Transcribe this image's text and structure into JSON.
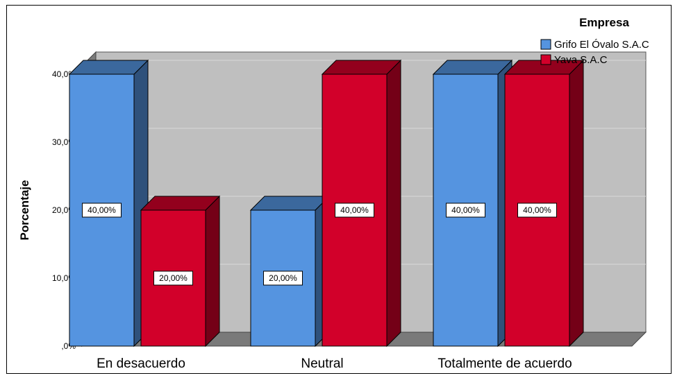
{
  "chart_data": {
    "type": "bar",
    "categories": [
      "En desacuerdo",
      "Neutral",
      "Totalmente de acuerdo"
    ],
    "series": [
      {
        "name": "Grifo El Óvalo S.A.C",
        "values": [
          40,
          20,
          40
        ],
        "labels": [
          "40,00%",
          "20,00%",
          "40,00%"
        ],
        "color": "#5594e0"
      },
      {
        "name": "Yava S.A.C",
        "values": [
          20,
          40,
          40
        ],
        "labels": [
          "20,00%",
          "40,00%",
          "40,00%"
        ],
        "color": "#d2002a"
      }
    ],
    "title": "",
    "xlabel": "",
    "ylabel": "Porcentaje",
    "ylim": [
      0,
      40
    ],
    "yticks": [
      0,
      10,
      20,
      30,
      40
    ],
    "ytick_labels": [
      ",0%",
      "10,0%",
      "20,0%",
      "30,0%",
      "40,0%"
    ],
    "legend": {
      "title": "Empresa",
      "position": "top-right"
    },
    "grid": true,
    "style": "3d",
    "colors": {
      "wall": "#bfbfbf",
      "side_wall": "#7a7a7a",
      "floor": "#7a7a7a",
      "grid": "#d9d9d9"
    }
  }
}
